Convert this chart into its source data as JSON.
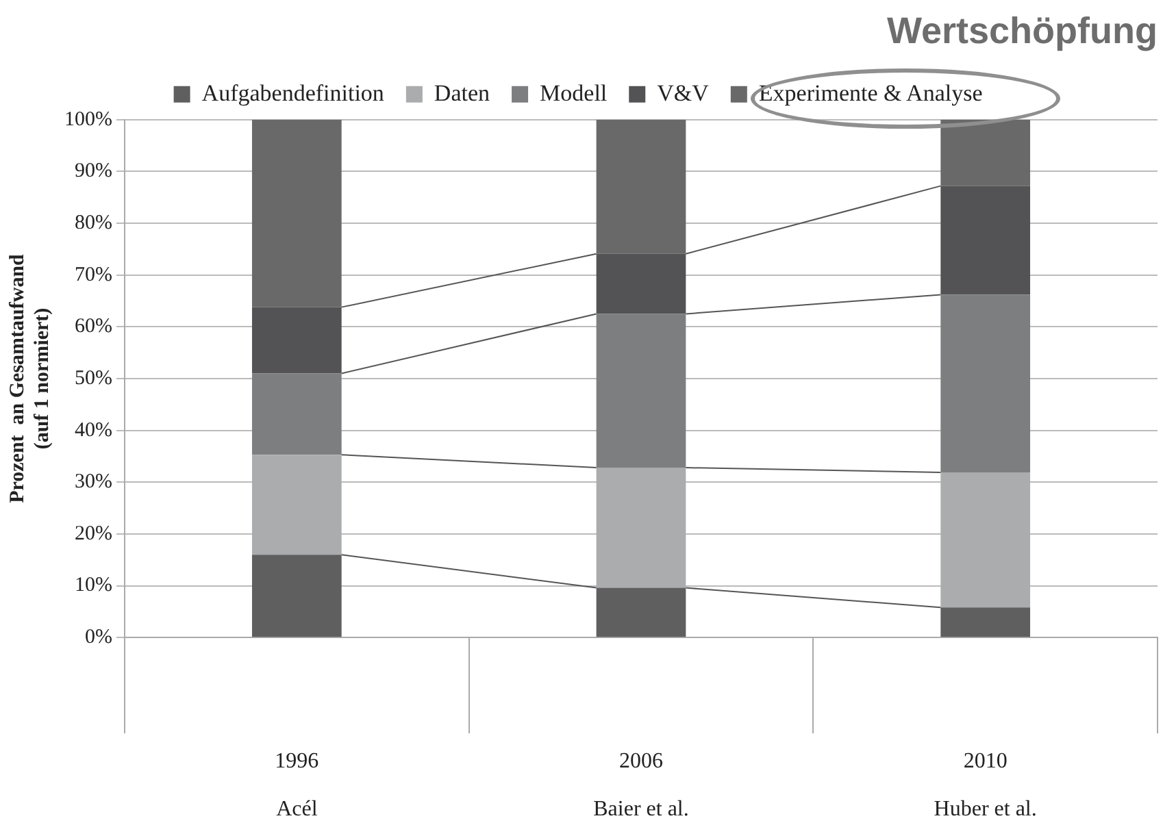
{
  "chart_data": {
    "type": "bar",
    "title": "Wertschöpfung",
    "ylabel": "Prozent  an Gesamtaufwand\n(auf 1 normiert)",
    "categories": [
      "1996\nAcél",
      "2006\nBaier et al.",
      "2010\nHuber et al."
    ],
    "stacked": true,
    "legend": "top",
    "grid": "y",
    "ylim": [
      0,
      100
    ],
    "yticks": [
      {
        "value": 0,
        "label": "0%"
      },
      {
        "value": 10,
        "label": "10%"
      },
      {
        "value": 20,
        "label": "20%"
      },
      {
        "value": 30,
        "label": "30%"
      },
      {
        "value": 40,
        "label": "40%"
      },
      {
        "value": 50,
        "label": "50%"
      },
      {
        "value": 60,
        "label": "60%"
      },
      {
        "value": 70,
        "label": "70%"
      },
      {
        "value": 80,
        "label": "80%"
      },
      {
        "value": 90,
        "label": "90%"
      },
      {
        "value": 100,
        "label": "100%"
      }
    ],
    "series": [
      {
        "name": "Aufgabendefinition",
        "color": "#5f5f5f",
        "values": [
          16,
          9.6,
          5.8
        ]
      },
      {
        "name": "Daten",
        "color": "#abacae",
        "values": [
          19.3,
          23.2,
          26.1
        ]
      },
      {
        "name": "Modell",
        "color": "#7d7e80",
        "values": [
          15.7,
          29.7,
          34.3
        ]
      },
      {
        "name": "V&V",
        "color": "#535355",
        "values": [
          12.8,
          11.6,
          21
        ]
      },
      {
        "name": "Experimente & Analyse",
        "color": "#696969",
        "values": [
          36.2,
          25.9,
          12.8
        ]
      }
    ]
  }
}
